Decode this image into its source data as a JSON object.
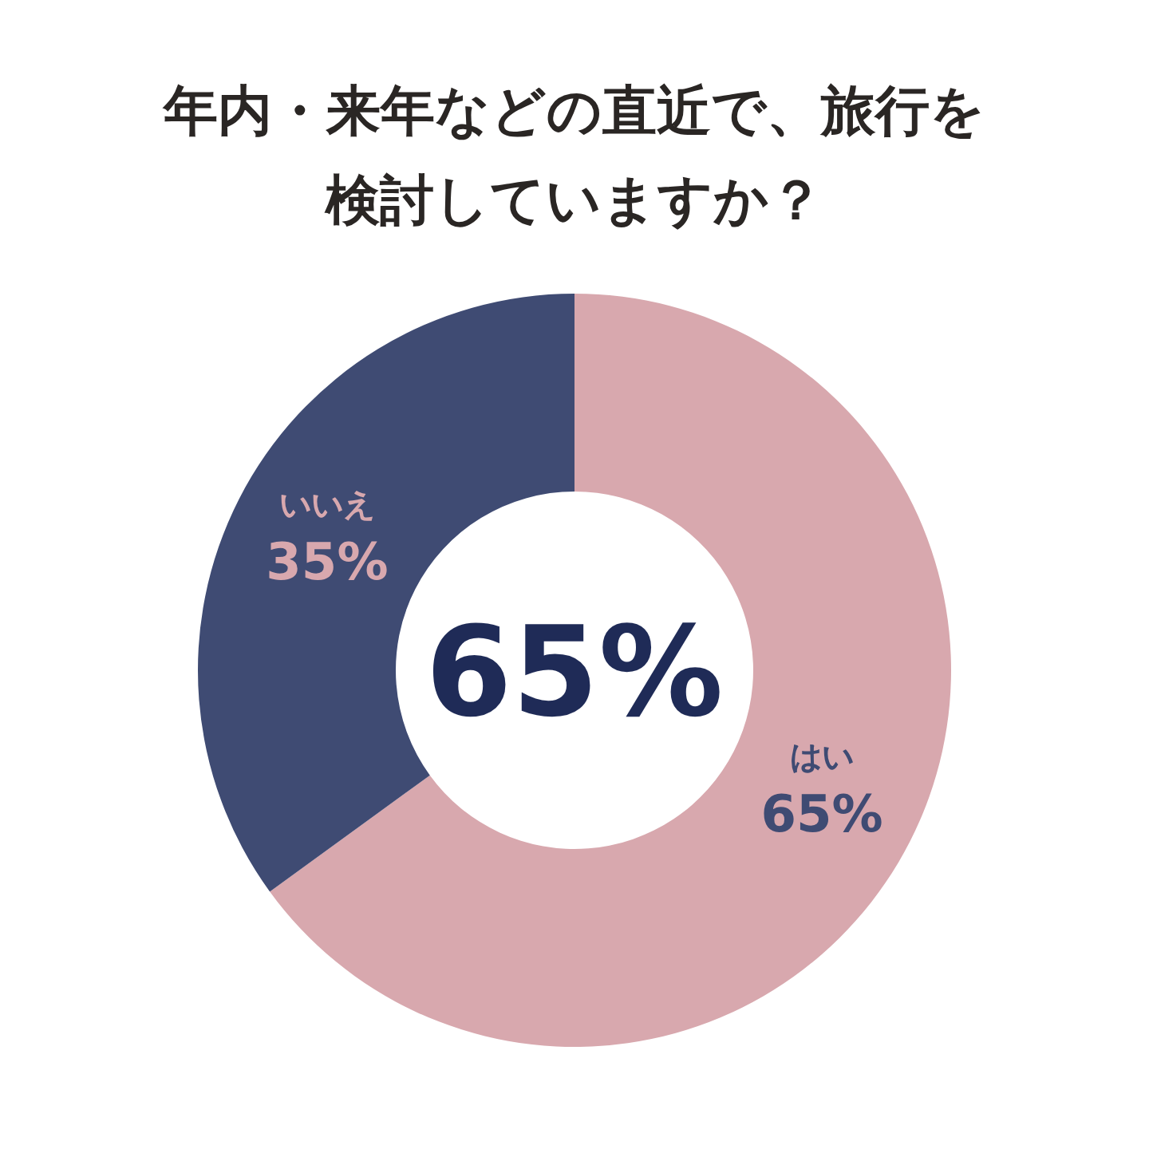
{
  "chart_data": {
    "type": "donut",
    "title": "年内・来年などの直近で、旅行を検討していますか？",
    "categories": [
      "はい",
      "いいえ"
    ],
    "values": [
      65,
      35
    ],
    "colors": [
      "#d8a8ae",
      "#3f4b73"
    ],
    "value_labels": [
      "65%",
      "35%"
    ],
    "annotations": [
      "65%"
    ]
  }
}
